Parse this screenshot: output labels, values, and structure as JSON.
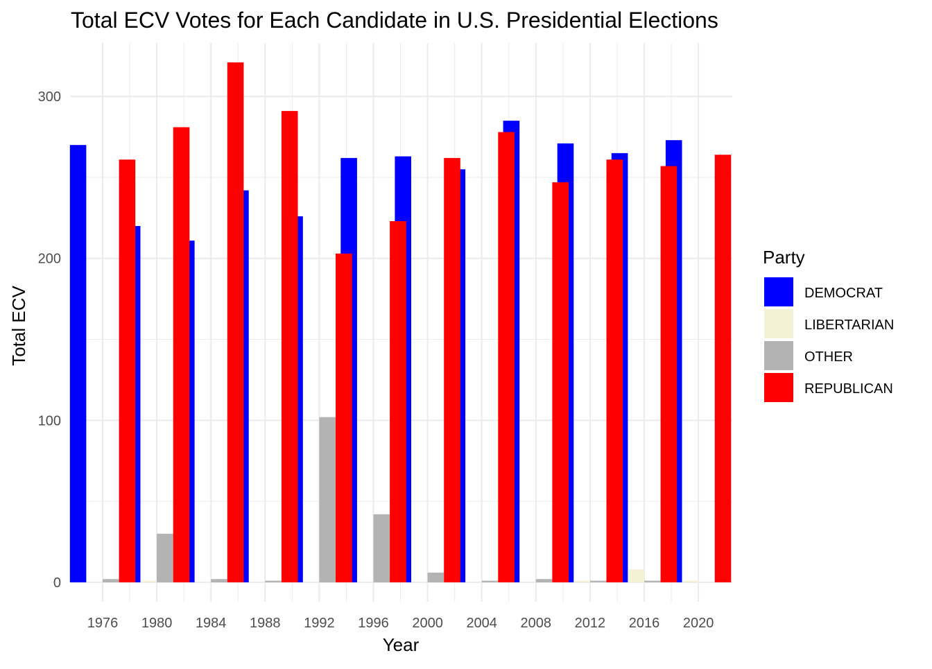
{
  "chart_data": {
    "type": "bar",
    "title": "Total ECV Votes for Each Candidate in U.S. Presidential Elections",
    "xlabel": "Year",
    "ylabel": "Total ECV",
    "categories": [
      "1976",
      "1980",
      "1984",
      "1988",
      "1992",
      "1996",
      "2000",
      "2004",
      "2008",
      "2012",
      "2016",
      "2020"
    ],
    "x_tick_labels": [
      "1976",
      "1980",
      "1984",
      "1988",
      "1992",
      "1996",
      "2000",
      "2004",
      "2008",
      "2012",
      "2016",
      "2020"
    ],
    "y_tick_labels": [
      "0",
      "100",
      "200",
      "300"
    ],
    "y_ticks": [
      0,
      100,
      200,
      300
    ],
    "ylim": [
      -12,
      333
    ],
    "grid": true,
    "legend": {
      "title": "Party",
      "position": "right"
    },
    "series": [
      {
        "name": "DEMOCRAT",
        "color": "#0000ff",
        "values": [
          270,
          220,
          211,
          242,
          226,
          262,
          263,
          255,
          285,
          271,
          265,
          273
        ]
      },
      {
        "name": "LIBERTARIAN",
        "color": "#f3f1d6",
        "values": [
          0,
          1,
          0,
          0,
          0,
          0,
          0,
          0,
          0,
          1,
          8,
          1
        ]
      },
      {
        "name": "OTHER",
        "color": "#b3b3b3",
        "values": [
          2,
          30,
          2,
          1,
          102,
          42,
          6,
          1,
          2,
          1,
          1,
          0
        ]
      },
      {
        "name": "REPUBLICAN",
        "color": "#ff0000",
        "values": [
          261,
          281,
          321,
          291,
          203,
          223,
          262,
          278,
          247,
          261,
          257,
          264
        ]
      }
    ]
  }
}
